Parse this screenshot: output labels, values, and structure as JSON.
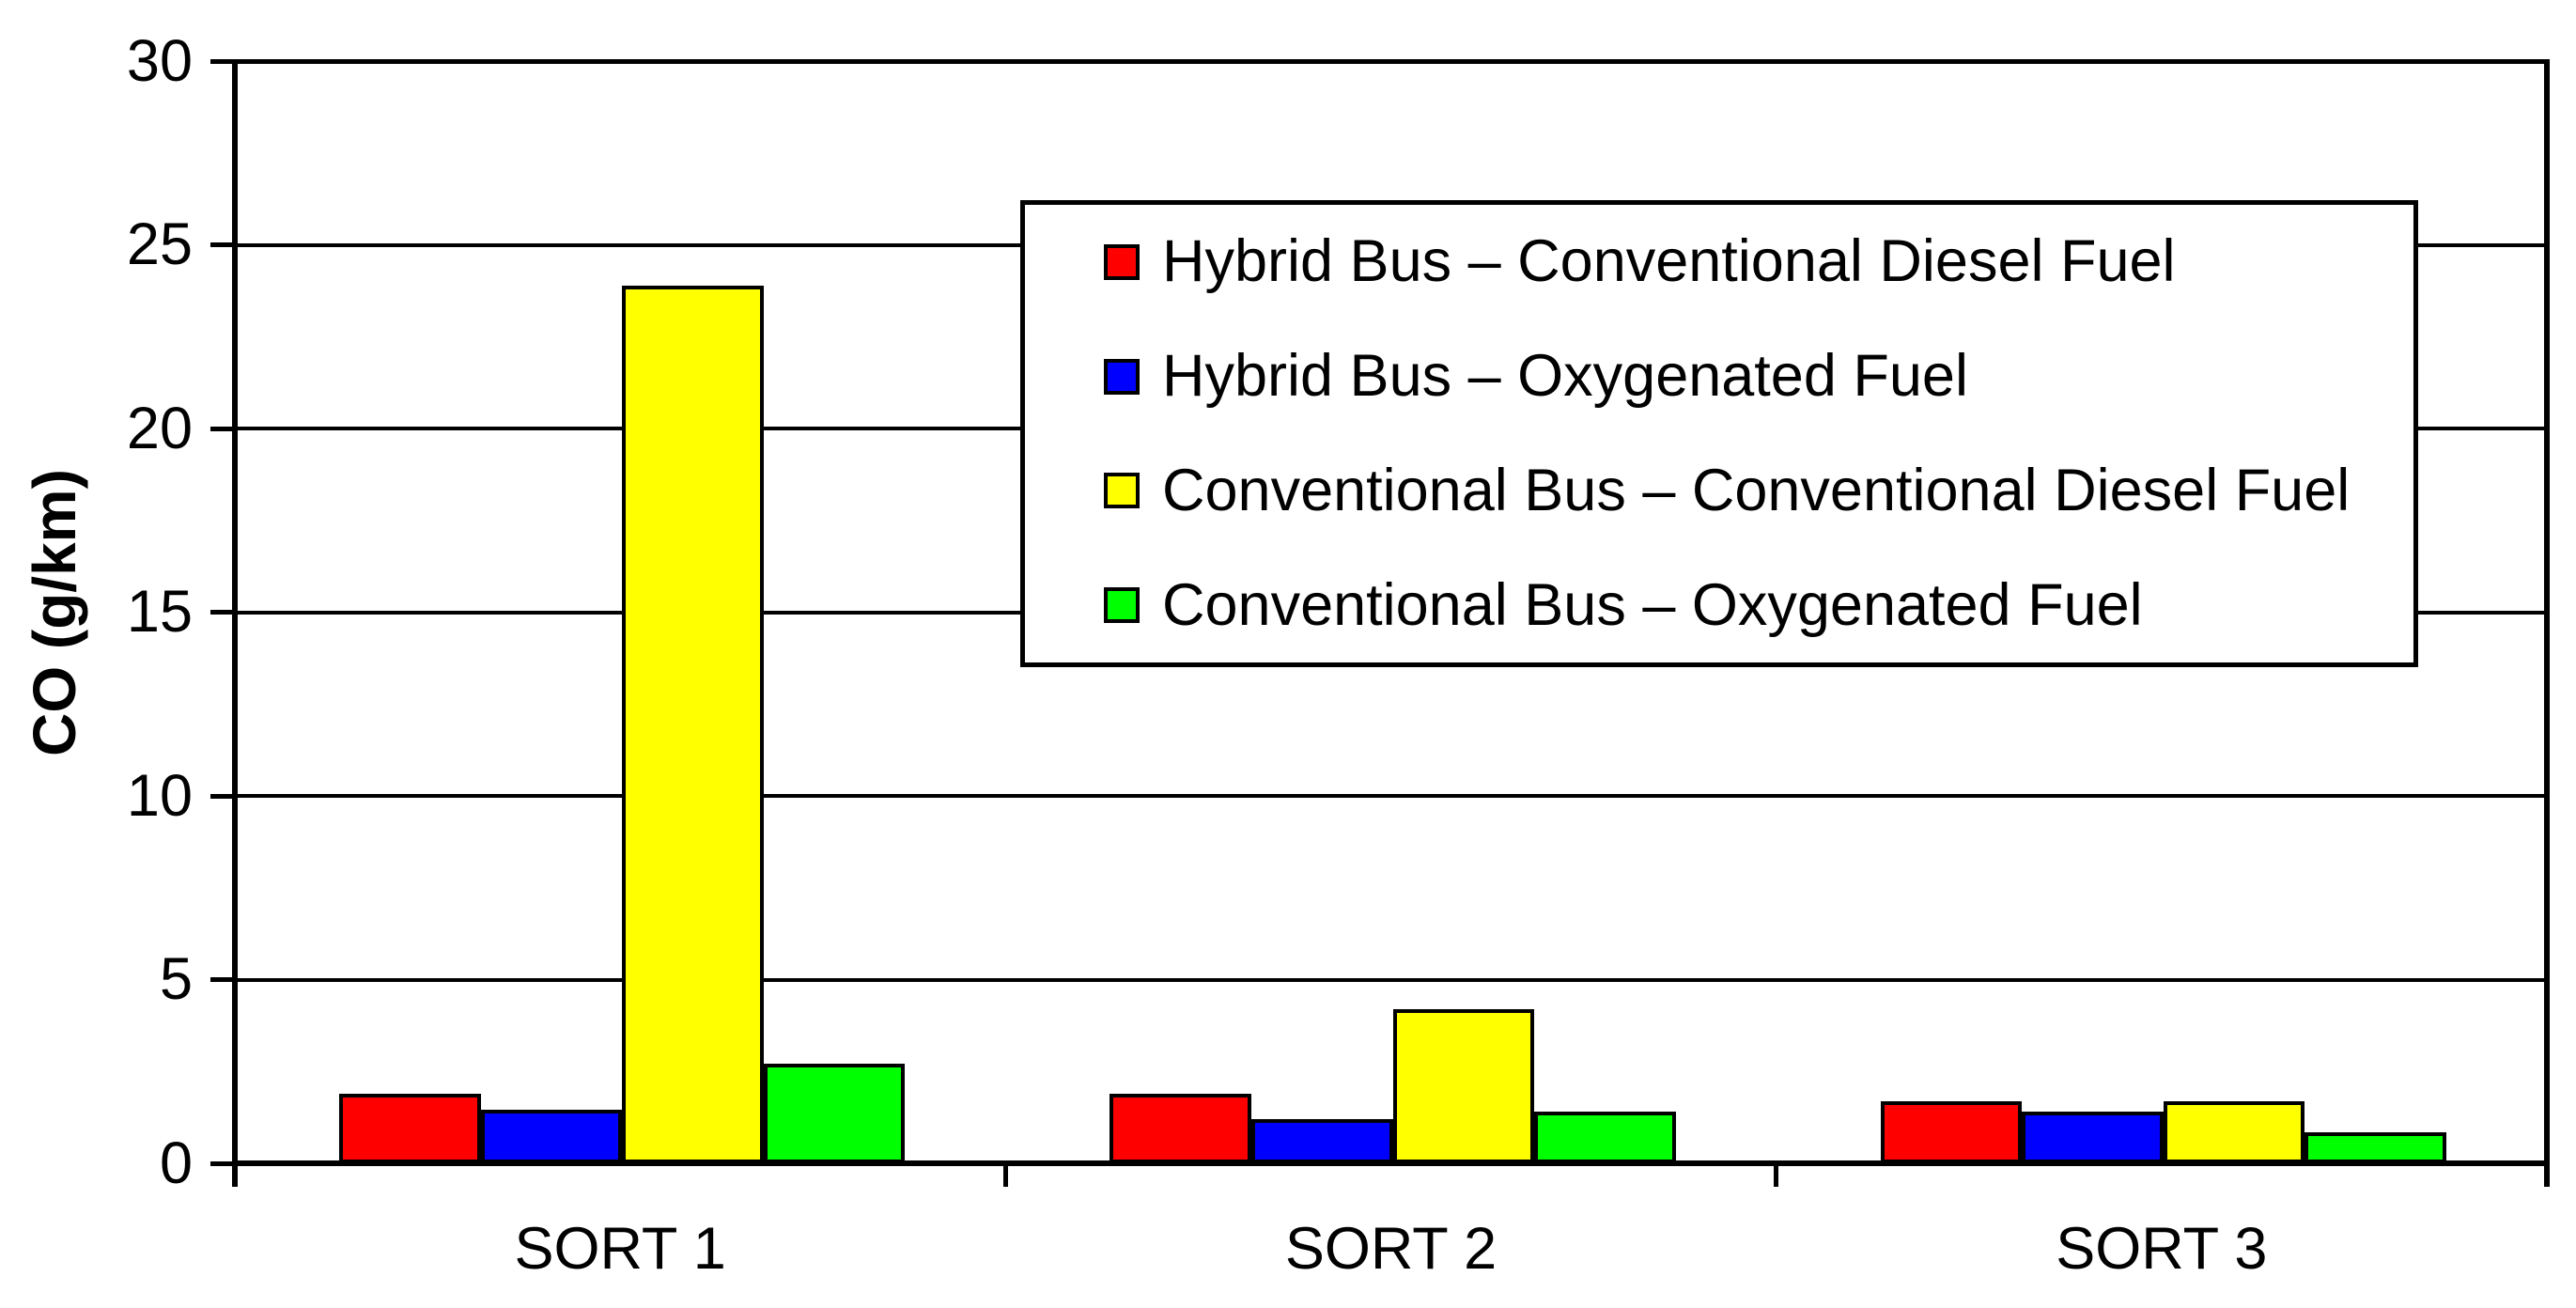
{
  "chart_data": {
    "type": "bar",
    "title": "",
    "xlabel": "",
    "ylabel": "CO (g/km)",
    "categories": [
      "SORT 1",
      "SORT 2",
      "SORT 3"
    ],
    "series": [
      {
        "name": "Hybrid Bus – Conventional Diesel Fuel",
        "color": "#FF0000",
        "values": [
          1.9,
          1.9,
          1.7
        ]
      },
      {
        "name": "Hybrid Bus – Oxygenated Fuel",
        "color": "#0000FF",
        "values": [
          1.45,
          1.2,
          1.4
        ]
      },
      {
        "name": "Conventional Bus – Conventional Diesel Fuel",
        "color": "#FFFF00",
        "values": [
          23.9,
          4.2,
          1.7
        ]
      },
      {
        "name": "Conventional Bus – Oxygenated Fuel",
        "color": "#00FF00",
        "values": [
          2.7,
          1.4,
          0.85
        ]
      }
    ],
    "ylim": [
      0,
      30
    ],
    "yticks": [
      0,
      5,
      10,
      15,
      20,
      25,
      30
    ],
    "grid": true,
    "gridline_color": "#000000",
    "bar_outline_color": "#000000",
    "axis_color": "#000000",
    "text_color": "#000000",
    "background": "#FFFFFF",
    "legend_position": "inside-upper-right",
    "legend_border_color": "#000000"
  }
}
